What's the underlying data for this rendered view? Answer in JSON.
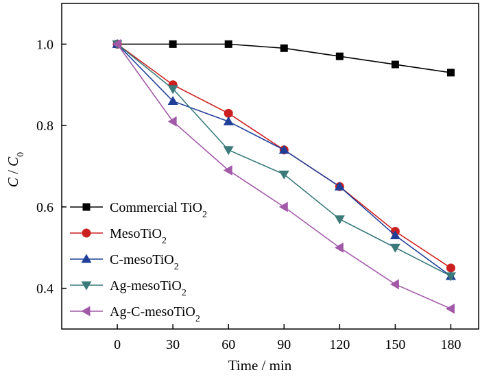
{
  "chart_data": {
    "type": "line",
    "title": "",
    "xlabel": "Time / min",
    "ylabel": {
      "c": "C",
      "sep": " / ",
      "c0": "C",
      "sub": "0"
    },
    "x": [
      0,
      30,
      60,
      90,
      120,
      150,
      180
    ],
    "xlim": [
      -30,
      195
    ],
    "ylim": [
      0.3,
      1.1
    ],
    "xticks": [
      "0",
      "30",
      "60",
      "90",
      "120",
      "150",
      "180"
    ],
    "yticks": [
      "0.4",
      "0.6",
      "0.8",
      "1.0"
    ],
    "ytick_values": [
      0.4,
      0.6,
      0.8,
      1.0
    ],
    "grid": false,
    "legend_position": "lower-left",
    "series": [
      {
        "name": "Commercial TiO2",
        "label_main": "Commercial TiO",
        "label_sub": "2",
        "color": "#000000",
        "marker": "square",
        "values": [
          1.0,
          1.0,
          1.0,
          0.99,
          0.97,
          0.95,
          0.93
        ]
      },
      {
        "name": "MesoTiO2",
        "label_main": "MesoTiO",
        "label_sub": "2",
        "color": "#cc1f1f",
        "marker": "circle",
        "values": [
          1.0,
          0.9,
          0.83,
          0.74,
          0.65,
          0.54,
          0.45
        ]
      },
      {
        "name": "C-mesoTiO2",
        "label_main": "C-mesoTiO",
        "label_sub": "2",
        "color": "#1f3f99",
        "marker": "triangle-up",
        "values": [
          1.0,
          0.86,
          0.81,
          0.74,
          0.65,
          0.53,
          0.43
        ]
      },
      {
        "name": "Ag-mesoTiO2",
        "label_main": "Ag-mesoTiO",
        "label_sub": "2",
        "color": "#3b7a7a",
        "marker": "triangle-down",
        "values": [
          1.0,
          0.89,
          0.74,
          0.68,
          0.57,
          0.5,
          0.43
        ]
      },
      {
        "name": "Ag-C-mesoTiO2",
        "label_main": "Ag-C-mesoTiO",
        "label_sub": "2",
        "color": "#a25aa8",
        "marker": "triangle-left",
        "values": [
          1.0,
          0.81,
          0.69,
          0.6,
          0.5,
          0.41,
          0.35
        ]
      }
    ]
  }
}
